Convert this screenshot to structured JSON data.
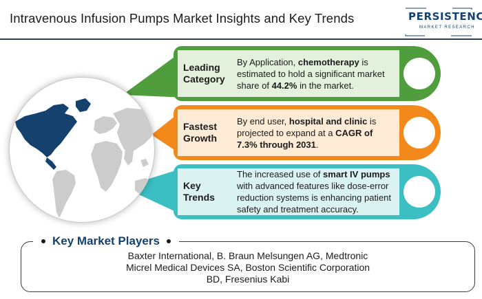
{
  "title": "Intravenous Infusion Pumps Market Insights and Key Trends",
  "logo": {
    "main": "PERSISTENCE",
    "sub": "MARKET RESEARCH"
  },
  "colors": {
    "green": "#4f9d3d",
    "orange": "#f3891b",
    "teal": "#3bbfc3",
    "navy": "#14416e",
    "highlight_region": "#14416e",
    "land": "#cccccc"
  },
  "cards": [
    {
      "label_line1": "Leading",
      "label_line2": "Category",
      "desc_pre": "By Application, ",
      "desc_bold1": "chemotherapy",
      "desc_mid": " is estimated to hold a significant market share of ",
      "desc_bold2": "44.2%",
      "desc_post": " in the market."
    },
    {
      "label_line1": "Fastest",
      "label_line2": "Growth",
      "desc_pre": "By end user, ",
      "desc_bold1": "hospital and clinic",
      "desc_mid": " is projected to expand at a ",
      "desc_bold2": "CAGR of 7.3% through 2031",
      "desc_post": "."
    },
    {
      "label_line1": "Key",
      "label_line2": "Trends",
      "desc_pre": "The increased use of ",
      "desc_bold1": "smart IV pumps",
      "desc_mid": " with advanced features like dose-error reduction systems is enhancing patient safety and treatment accuracy.",
      "desc_bold2": "",
      "desc_post": ""
    }
  ],
  "key_market_players": {
    "title": "Key Market Players",
    "lines": [
      "Baxter International, B. Braun Melsungen AG, Medtronic",
      "Micrel Medical Devices SA, Boston Scientific Corporation",
      "BD, Fresenius Kabi"
    ]
  }
}
